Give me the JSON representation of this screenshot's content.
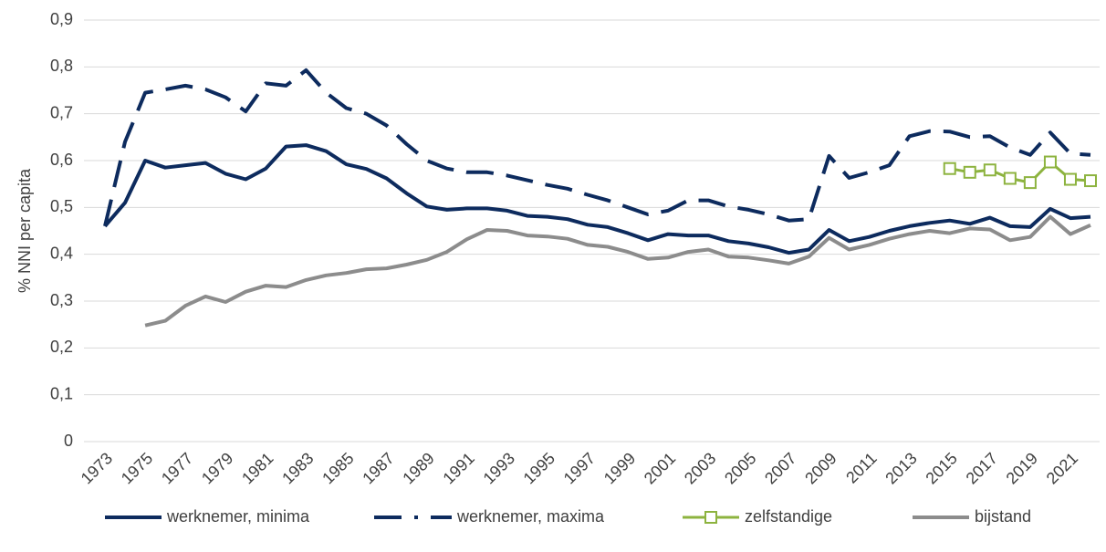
{
  "chart_data": {
    "type": "line",
    "y_label": "% NNI per capita",
    "categories": [
      "1973",
      null,
      "1975",
      null,
      "1977",
      null,
      "1979",
      null,
      "1981",
      null,
      "1983",
      null,
      "1985",
      null,
      "1987",
      null,
      "1989",
      null,
      "1991",
      null,
      "1993",
      null,
      "1995",
      null,
      "1997",
      null,
      "1999",
      null,
      "2001",
      null,
      "2003",
      null,
      "2005",
      null,
      "2007",
      null,
      "2009",
      null,
      "2011",
      null,
      "2013",
      null,
      "2015",
      null,
      "2017",
      null,
      "2019",
      null,
      "2021",
      null
    ],
    "ylim": [
      0,
      0.9
    ],
    "yticks": [
      0,
      {
        "value": 0.1,
        "label": "0,1"
      },
      {
        "value": 0.2,
        "label": "0,2"
      },
      {
        "value": 0.3,
        "label": "0,3"
      },
      {
        "value": 0.4,
        "label": "0,4"
      },
      {
        "value": 0.5,
        "label": "0,5"
      },
      {
        "value": 0.6,
        "label": "0,6"
      },
      {
        "value": 0.7,
        "label": "0,7"
      },
      {
        "value": 0.8,
        "label": "0,8"
      },
      {
        "value": 0.9,
        "label": "0,9"
      }
    ],
    "grid": true,
    "legend": "bottom",
    "series": [
      {
        "name": "werknemer, minima",
        "color": "#0d2b5e",
        "values": [
          0.46,
          0.51,
          0.6,
          0.585,
          0.59,
          0.595,
          0.572,
          0.56,
          0.583,
          0.63,
          0.633,
          0.62,
          0.592,
          0.582,
          0.562,
          0.53,
          0.502,
          0.495,
          0.498,
          0.498,
          0.493,
          0.482,
          0.48,
          0.475,
          0.463,
          0.458,
          0.445,
          0.43,
          0.443,
          0.44,
          0.44,
          0.428,
          0.423,
          0.415,
          0.403,
          0.41,
          0.452,
          0.428,
          0.437,
          0.45,
          0.46,
          0.467,
          0.472,
          0.465,
          0.478,
          0.46,
          0.458,
          0.497,
          0.477,
          0.48
        ]
      },
      {
        "name": "werknemer, maxima",
        "color": "#0d2b5e",
        "dash": true,
        "values": [
          0.46,
          0.64,
          0.745,
          0.752,
          0.76,
          0.752,
          0.735,
          0.705,
          0.765,
          0.76,
          0.793,
          0.745,
          0.712,
          0.7,
          0.675,
          0.635,
          0.6,
          0.583,
          0.575,
          0.575,
          0.568,
          0.558,
          0.548,
          0.54,
          0.527,
          0.515,
          0.5,
          0.485,
          0.493,
          0.515,
          0.515,
          0.502,
          0.495,
          0.485,
          0.472,
          0.475,
          0.61,
          0.563,
          0.575,
          0.59,
          0.652,
          0.663,
          0.662,
          0.65,
          0.652,
          0.628,
          0.612,
          0.66,
          0.615,
          0.612
        ]
      },
      {
        "name": "zelfstandige",
        "color": "#8db33f",
        "marker": "square",
        "values": [
          null,
          null,
          null,
          null,
          null,
          null,
          null,
          null,
          null,
          null,
          null,
          null,
          null,
          null,
          null,
          null,
          null,
          null,
          null,
          null,
          null,
          null,
          null,
          null,
          null,
          null,
          null,
          null,
          null,
          null,
          null,
          null,
          null,
          null,
          null,
          null,
          null,
          null,
          null,
          null,
          null,
          null,
          0.583,
          0.575,
          0.58,
          0.562,
          0.553,
          0.597,
          0.56,
          0.557
        ]
      },
      {
        "name": "bijstand",
        "color": "#8c8c8c",
        "values": [
          null,
          null,
          0.248,
          0.258,
          0.29,
          0.31,
          0.298,
          0.32,
          0.333,
          0.33,
          0.345,
          0.355,
          0.36,
          0.368,
          0.37,
          0.378,
          0.388,
          0.405,
          0.432,
          0.452,
          0.45,
          0.44,
          0.438,
          0.433,
          0.42,
          0.416,
          0.405,
          0.39,
          0.393,
          0.405,
          0.41,
          0.395,
          0.393,
          0.387,
          0.38,
          0.395,
          0.435,
          0.41,
          0.42,
          0.433,
          0.443,
          0.45,
          0.445,
          0.455,
          0.453,
          0.43,
          0.437,
          0.48,
          0.443,
          0.462
        ]
      }
    ]
  }
}
